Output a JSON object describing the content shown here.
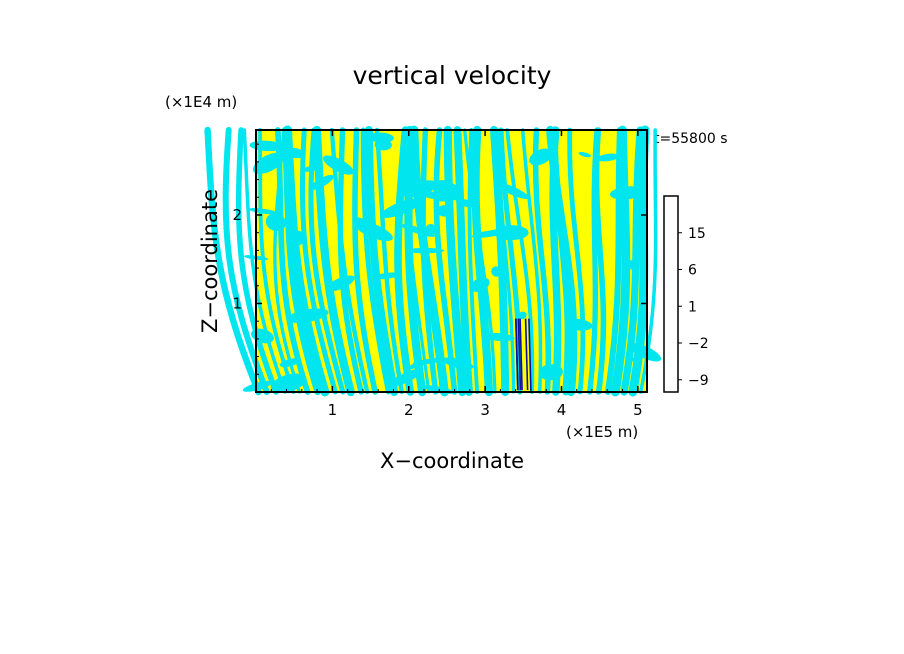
{
  "chart_data": {
    "type": "heatmap",
    "title": "vertical velocity",
    "xlabel": "X−coordinate",
    "ylabel": "Z−coordinate",
    "x_scale_label": "(×1E5 m)",
    "y_scale_label": "(×1E4 m)",
    "time_label": "t=55800 s",
    "xlim": [
      0,
      5.12
    ],
    "ylim": [
      0,
      2.96
    ],
    "x_ticks": [
      1,
      2,
      3,
      4,
      5
    ],
    "x_tick_labels": [
      "1",
      "2",
      "3",
      "4",
      "5"
    ],
    "y_ticks": [
      1,
      2
    ],
    "y_tick_labels": [
      "1",
      "2"
    ],
    "field_description": "alternating updraft/downdraft bands",
    "dominant_colors": {
      "positive": "#ffff00",
      "negative": "#00e5ee",
      "strong_negative": "#1010a0"
    },
    "colorbar": {
      "levels": [
        -12,
        -9,
        -6,
        -3,
        -2,
        -1,
        0,
        1,
        2,
        3,
        6,
        9,
        12,
        15,
        18,
        21
      ],
      "colors": [
        "#e0008c",
        "#c8009c",
        "#7a009a",
        "#3a00a0",
        "#0000c8",
        "#0066ff",
        "#00e5ee",
        "#ffff00",
        "#ffd700",
        "#ffa500",
        "#ff6000",
        "#ee0000",
        "#ff5555",
        "#ff9999",
        "#ffd8d8",
        "#fff4f0"
      ],
      "labeled_levels": [
        -9,
        -2,
        1,
        6,
        15
      ],
      "tick_labels": [
        "−9",
        "−2",
        "1",
        "6",
        "15"
      ]
    }
  }
}
